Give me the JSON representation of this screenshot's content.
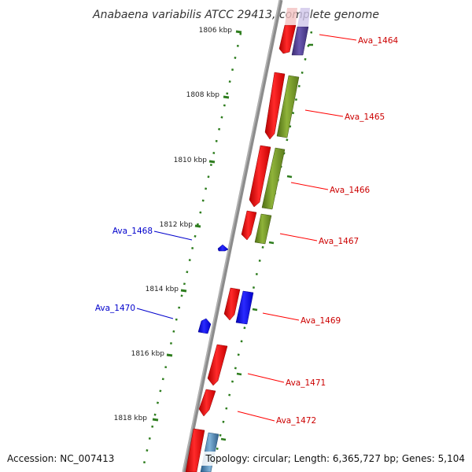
{
  "title": "Anabaena variabilis ATCC 29413, complete genome",
  "accession": "Accession: NC_007413",
  "summary": "Topology: circular; Length: 6,365,727 bp; Genes: 5,104",
  "colors": {
    "backbone": "#8c8c8c",
    "scale": "#2e7d1e",
    "cds": "#ff0000",
    "blue": "#0000ff",
    "olive": "#6b8e23",
    "purple": "#4b3a8c",
    "label_right": "#cc0000",
    "label_left": "#0000cc"
  },
  "ticks": [
    "1806 kbp",
    "1808 kbp",
    "1810 kbp",
    "1812 kbp",
    "1814 kbp",
    "1816 kbp",
    "1818 kbp"
  ],
  "gene_labels_right": [
    "Ava_1464",
    "Ava_1465",
    "Ava_1466",
    "Ava_1467",
    "Ava_1469",
    "Ava_1471",
    "Ava_1472"
  ],
  "gene_labels_left": [
    "Ava_1468",
    "Ava_1470"
  ]
}
